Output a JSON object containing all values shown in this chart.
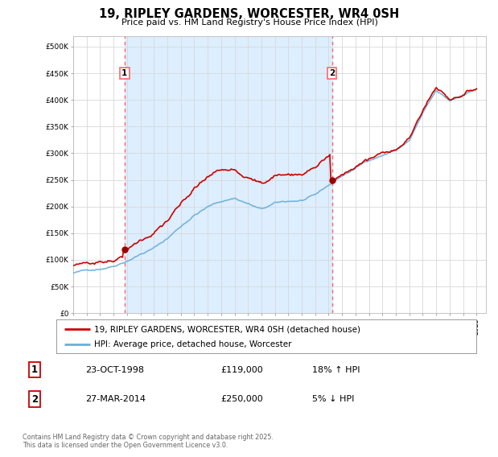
{
  "title": "19, RIPLEY GARDENS, WORCESTER, WR4 0SH",
  "subtitle": "Price paid vs. HM Land Registry's House Price Index (HPI)",
  "legend_line1": "19, RIPLEY GARDENS, WORCESTER, WR4 0SH (detached house)",
  "legend_line2": "HPI: Average price, detached house, Worcester",
  "purchase1_label": "1",
  "purchase1_date": "23-OCT-1998",
  "purchase1_price": 119000,
  "purchase1_hpi": "18% ↑ HPI",
  "purchase2_label": "2",
  "purchase2_date": "27-MAR-2014",
  "purchase2_price": 250000,
  "purchase2_hpi": "5% ↓ HPI",
  "purchase1_year": 1998.81,
  "purchase2_year": 2014.24,
  "hpi_line_color": "#6baed6",
  "price_color": "#cc0000",
  "marker_color": "#990000",
  "vline_color": "#ff6666",
  "bg_between_color": "#ddeeff",
  "background_color": "#ffffff",
  "grid_color": "#d8d8d8",
  "ylim": [
    0,
    520000
  ],
  "xlim_start": 1995.0,
  "xlim_end": 2025.7,
  "footer": "Contains HM Land Registry data © Crown copyright and database right 2025.\nThis data is licensed under the Open Government Licence v3.0."
}
